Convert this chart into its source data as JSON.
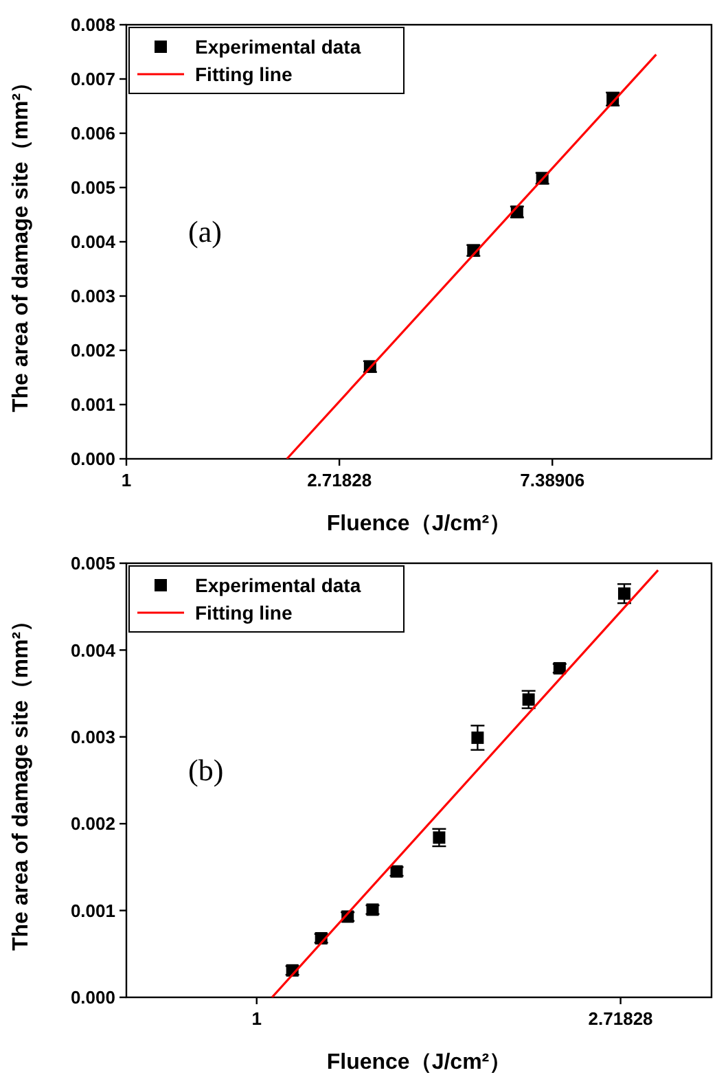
{
  "chart_data": [
    {
      "type": "scatter",
      "xlabel": "Fluence（J/cm²）",
      "ylabel": "The area of damage site（mm²）",
      "log": "x",
      "xlim": [
        1,
        15.6
      ],
      "xticks": [
        1,
        2.71828,
        7.38906
      ],
      "ylim": [
        0,
        0.008
      ],
      "yticks": [
        {
          "value": 0,
          "label": "0.000"
        },
        0.001,
        0.002,
        0.003,
        0.004,
        0.005,
        0.006,
        0.007,
        0.008
      ],
      "legend": "top left",
      "grid": false,
      "annotations": [
        "(a)"
      ],
      "series": [
        {
          "name": "Experimental data",
          "marker": "square",
          "color": "#000000",
          "x": [
            3.14,
            5.1,
            6.26,
            7.05,
            9.81
          ],
          "values": [
            0.0017,
            0.00384,
            0.00455,
            0.00517,
            0.00663
          ],
          "errors": [
            0.0001,
            0.0001,
            0.0001,
            0.0001,
            0.00012
          ]
        },
        {
          "name": "Fitting line",
          "type": "line",
          "marker": "none",
          "line_style": "solid",
          "color": "#ff0000",
          "x": [
            2.125,
            12.03
          ],
          "values": [
            0,
            0.00745
          ]
        }
      ]
    },
    {
      "type": "scatter",
      "xlabel": "Fluence（J/cm²）",
      "ylabel": "The area of damage site（mm²）",
      "log": "x",
      "xlim": [
        0.699,
        3.49
      ],
      "xticks": [
        1,
        2.71828
      ],
      "ylim": [
        0,
        0.005
      ],
      "yticks": [
        {
          "value": 0,
          "label": "0.000"
        },
        0.001,
        0.002,
        0.003,
        0.004,
        0.005
      ],
      "legend": "top left",
      "grid": false,
      "annotations": [
        "(b)"
      ],
      "series": [
        {
          "name": "Experimental data",
          "marker": "square",
          "color": "#000000",
          "x": [
            1.103,
            1.194,
            1.284,
            1.375,
            1.469,
            1.651,
            1.835,
            2.111,
            2.299,
            2.746
          ],
          "values": [
            0.00031,
            0.00068,
            0.00093,
            0.00101,
            0.00145,
            0.00184,
            0.00299,
            0.00343,
            0.00379,
            0.00465
          ],
          "errors": [
            5e-05,
            5e-05,
            5e-05,
            5e-05,
            5e-05,
            0.0001,
            0.00014,
            0.0001,
            5e-05,
            0.00011
          ]
        },
        {
          "name": "Fitting line",
          "type": "line",
          "marker": "none",
          "line_style": "solid",
          "color": "#ff0000",
          "x": [
            1.043,
            3.013
          ],
          "values": [
            0,
            0.00492
          ]
        }
      ]
    }
  ]
}
